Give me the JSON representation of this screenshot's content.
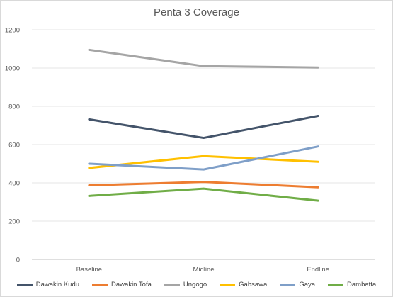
{
  "chart_data": {
    "type": "line",
    "title": "Penta 3 Coverage",
    "xlabel": "",
    "ylabel": "",
    "categories": [
      "Baseline",
      "Midline",
      "Endline"
    ],
    "ylim": [
      0,
      1200
    ],
    "yticks": [
      "0",
      "200",
      "400",
      "600",
      "800",
      "1000",
      "1200"
    ],
    "grid": true,
    "legend_position": "bottom",
    "series": [
      {
        "name": "Dawakin Kudu",
        "color": "#44546a",
        "values": [
          732,
          635,
          750
        ]
      },
      {
        "name": "Dawakin Tofa",
        "color": "#ed7d31",
        "values": [
          387,
          405,
          377
        ]
      },
      {
        "name": "Ungogo",
        "color": "#a5a5a5",
        "values": [
          1095,
          1010,
          1003
        ]
      },
      {
        "name": "Gabsawa",
        "color": "#ffc000",
        "values": [
          478,
          540,
          510
        ]
      },
      {
        "name": "Gaya",
        "color": "#7f9fc8",
        "values": [
          500,
          470,
          590
        ]
      },
      {
        "name": "Dambatta",
        "color": "#70ad47",
        "values": [
          332,
          370,
          307
        ]
      }
    ]
  }
}
